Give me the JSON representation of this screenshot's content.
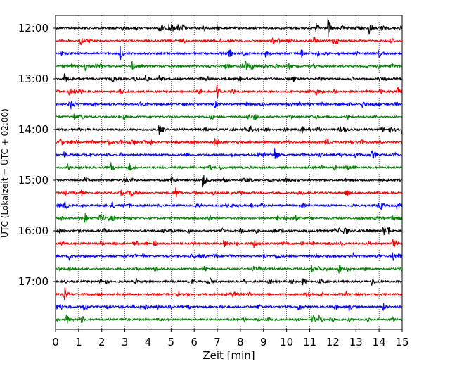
{
  "chart_data": {
    "type": "line",
    "subtype": "seismogram helicorder (dayplot)",
    "xlabel": "Zeit  [min]",
    "ylabel": "UTC (Lokalzeit = UTC + 02:00)",
    "xlim": [
      0,
      15
    ],
    "x_ticks": [
      0,
      1,
      2,
      3,
      4,
      5,
      6,
      7,
      8,
      9,
      10,
      11,
      12,
      13,
      14,
      15
    ],
    "y_ticks": [
      "12:00",
      "13:00",
      "14:00",
      "15:00",
      "16:00",
      "17:00"
    ],
    "grid": "vertical dotted at each minute",
    "trace_colors": [
      "#000000",
      "#ff0000",
      "#0000ff",
      "#008000"
    ],
    "traces": [
      {
        "start": "12:00",
        "color": "#000000",
        "events": [
          [
            4.5,
            0.8
          ],
          [
            4.9,
            0.6
          ],
          [
            5.3,
            0.4
          ],
          [
            11.3,
            0.7
          ],
          [
            11.8,
            1.0
          ],
          [
            13.6,
            0.8
          ],
          [
            14.1,
            0.7
          ]
        ]
      },
      {
        "start": "12:15",
        "color": "#ff0000",
        "events": [
          [
            1.1,
            0.6
          ],
          [
            11.2,
            0.5
          ],
          [
            12.0,
            0.4
          ]
        ]
      },
      {
        "start": "12:30",
        "color": "#0000ff",
        "events": [
          [
            2.8,
            0.9
          ],
          [
            8.1,
            0.5
          ],
          [
            9.1,
            0.4
          ],
          [
            10.6,
            0.9
          ],
          [
            14.0,
            0.5
          ]
        ]
      },
      {
        "start": "12:45",
        "color": "#008000",
        "events": [
          [
            1.3,
            0.6
          ],
          [
            3.3,
            0.6
          ],
          [
            8.2,
            1.0
          ],
          [
            8.5,
            0.4
          ]
        ]
      },
      {
        "start": "13:00",
        "color": "#000000",
        "events": [
          [
            0.4,
            0.7
          ],
          [
            3.9,
            0.5
          ],
          [
            4.5,
            0.4
          ]
        ]
      },
      {
        "start": "13:15",
        "color": "#ff0000",
        "events": [
          [
            0.6,
            0.5
          ],
          [
            2.8,
            0.4
          ],
          [
            7.0,
            0.8
          ],
          [
            11.3,
            0.4
          ],
          [
            14.8,
            0.5
          ]
        ]
      },
      {
        "start": "13:30",
        "color": "#0000ff",
        "events": [
          [
            0.7,
            0.7
          ],
          [
            6.9,
            0.4
          ],
          [
            13.3,
            0.4
          ]
        ]
      },
      {
        "start": "13:45",
        "color": "#008000",
        "events": [
          [
            0.8,
            0.4
          ],
          [
            8.6,
            0.5
          ]
        ]
      },
      {
        "start": "14:00",
        "color": "#000000",
        "events": [
          [
            4.5,
            0.8
          ],
          [
            8.2,
            0.3
          ],
          [
            12.5,
            0.3
          ],
          [
            15.0,
            0.6
          ]
        ]
      },
      {
        "start": "14:15",
        "color": "#ff0000",
        "events": [
          [
            2.3,
            0.4
          ],
          [
            6.9,
            0.4
          ],
          [
            11.7,
            0.8
          ]
        ]
      },
      {
        "start": "14:30",
        "color": "#0000ff",
        "events": [
          [
            0.4,
            0.4
          ],
          [
            9.5,
            1.0
          ],
          [
            13.0,
            0.3
          ]
        ]
      },
      {
        "start": "14:45",
        "color": "#008000",
        "events": [
          [
            0.5,
            0.5
          ],
          [
            2.4,
            0.6
          ],
          [
            3.2,
            0.5
          ],
          [
            12.6,
            0.6
          ]
        ]
      },
      {
        "start": "15:00",
        "color": "#000000",
        "events": [
          [
            1.3,
            0.3
          ],
          [
            5.0,
            0.6
          ],
          [
            6.4,
            1.0
          ],
          [
            7.3,
            0.3
          ],
          [
            10.0,
            0.3
          ]
        ]
      },
      {
        "start": "15:15",
        "color": "#ff0000",
        "events": [
          [
            3.3,
            0.5
          ],
          [
            5.2,
            0.6
          ],
          [
            6.8,
            0.3
          ]
        ]
      },
      {
        "start": "15:30",
        "color": "#0000ff",
        "events": [
          [
            7.4,
            0.3
          ],
          [
            14.1,
            0.4
          ],
          [
            14.8,
            0.6
          ]
        ]
      },
      {
        "start": "15:45",
        "color": "#008000",
        "events": [
          [
            1.3,
            0.6
          ],
          [
            2.3,
            0.4
          ],
          [
            10.4,
            0.3
          ]
        ]
      },
      {
        "start": "16:00",
        "color": "#000000",
        "events": [
          [
            0.2,
            0.3
          ],
          [
            12.5,
            0.6
          ],
          [
            14.2,
            0.7
          ],
          [
            14.4,
            0.5
          ]
        ]
      },
      {
        "start": "16:15",
        "color": "#ff0000",
        "events": [
          [
            7.3,
            0.5
          ],
          [
            8.6,
            0.5
          ],
          [
            14.6,
            1.0
          ]
        ]
      },
      {
        "start": "16:30",
        "color": "#0000ff",
        "events": [
          [
            0.6,
            0.3
          ],
          [
            12.9,
            0.5
          ],
          [
            14.6,
            0.7
          ]
        ]
      },
      {
        "start": "16:45",
        "color": "#008000",
        "events": [
          [
            0.6,
            0.3
          ],
          [
            11.1,
            0.4
          ],
          [
            12.3,
            0.4
          ]
        ]
      },
      {
        "start": "17:00",
        "color": "#000000",
        "events": [
          [
            6.7,
            0.4
          ],
          [
            10.7,
            0.5
          ],
          [
            13.7,
            0.5
          ]
        ]
      },
      {
        "start": "17:15",
        "color": "#ff0000",
        "events": [
          [
            0.4,
            0.6
          ],
          [
            7.7,
            0.3
          ]
        ]
      },
      {
        "start": "17:30",
        "color": "#0000ff",
        "events": [
          [
            10.5,
            0.6
          ],
          [
            12.7,
            0.5
          ],
          [
            14.2,
            0.4
          ]
        ]
      },
      {
        "start": "17:45",
        "color": "#008000",
        "events": [
          [
            0.5,
            0.6
          ],
          [
            11.1,
            0.4
          ],
          [
            11.4,
            0.4
          ]
        ]
      }
    ]
  }
}
